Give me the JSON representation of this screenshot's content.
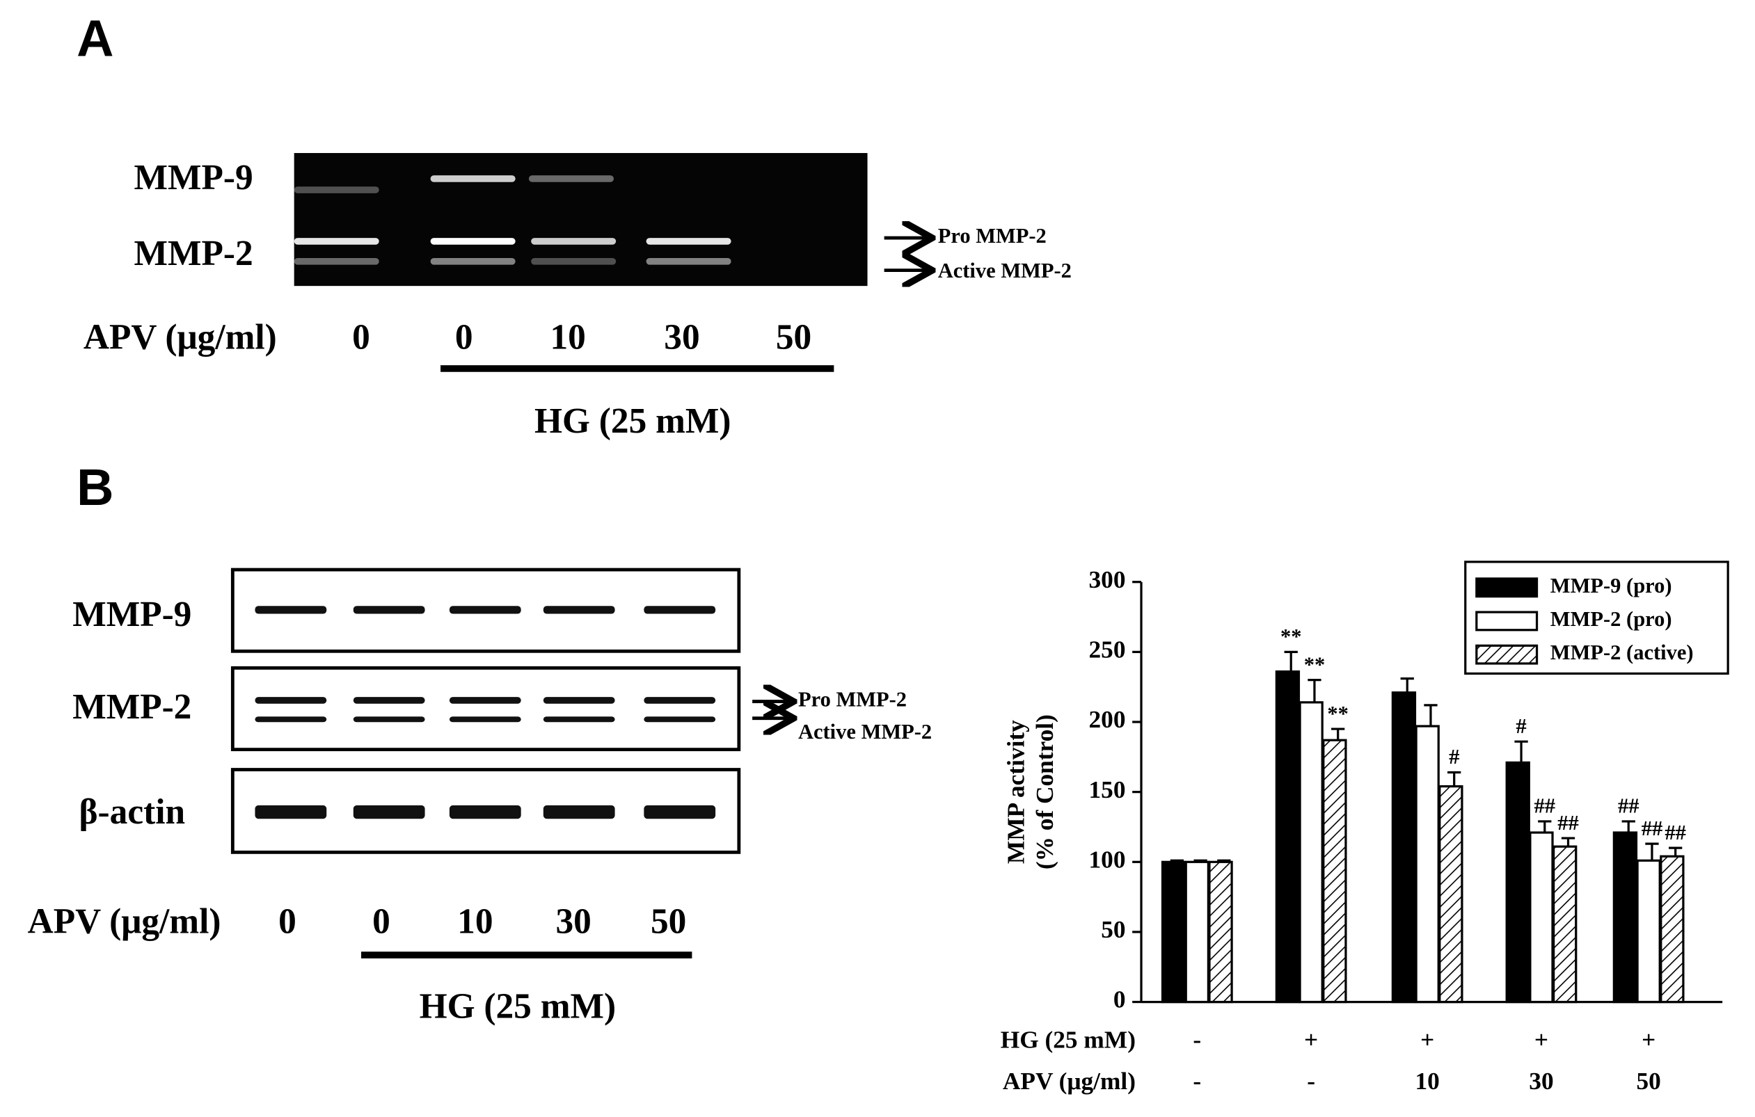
{
  "panel_a": {
    "label": "A",
    "gel_labels": [
      "MMP-9",
      "MMP-2"
    ],
    "arrow_labels": [
      "Pro  MMP-2",
      "Active MMP-2"
    ],
    "treatment_label": "APV (μg/ml)",
    "lanes": [
      "0",
      "0",
      "10",
      "30",
      "50"
    ],
    "group_label": "HG (25 mM)"
  },
  "panel_b": {
    "label": "B",
    "blot_labels": [
      "MMP-9",
      "MMP-2",
      "β-actin"
    ],
    "arrow_labels": [
      "Pro  MMP-2",
      "Active MMP-2"
    ],
    "treatment_label": "APV (μg/ml)",
    "lanes": [
      "0",
      "0",
      "10",
      "30",
      "50"
    ],
    "group_label": "HG (25 mM)"
  },
  "chart_data": {
    "type": "bar",
    "y_label": [
      "MMP activity",
      "(% of Control)"
    ],
    "category_rows": [
      {
        "name": "HG (25 mM)",
        "labels": [
          "-",
          "+",
          "+",
          "+",
          "+"
        ]
      },
      {
        "name": "APV (μg/ml)",
        "labels": [
          "-",
          "-",
          "10",
          "30",
          "50"
        ]
      }
    ],
    "series": [
      {
        "name": "MMP-9 (pro)",
        "color": "#000000",
        "values": [
          100,
          236,
          221,
          171,
          121
        ],
        "errors": [
          1,
          14,
          10,
          15,
          8
        ],
        "annotations": [
          null,
          "**",
          null,
          "#",
          "##"
        ]
      },
      {
        "name": "MMP-2 (pro)",
        "color": "#ffffff",
        "values": [
          100,
          214,
          197,
          121,
          101
        ],
        "errors": [
          1,
          16,
          15,
          8,
          12
        ],
        "annotations": [
          null,
          "**",
          null,
          "##",
          "##"
        ]
      },
      {
        "name": "MMP-2 (active)",
        "color": "#ffffff",
        "hatch": true,
        "values": [
          100,
          187,
          154,
          111,
          104
        ],
        "errors": [
          1,
          8,
          10,
          6,
          6
        ],
        "annotations": [
          null,
          "**",
          "#",
          "##",
          "##"
        ]
      }
    ],
    "ylim": [
      0,
      300
    ],
    "yticks": [
      0,
      50,
      100,
      150,
      200,
      250,
      300
    ],
    "legend": "top-right"
  }
}
